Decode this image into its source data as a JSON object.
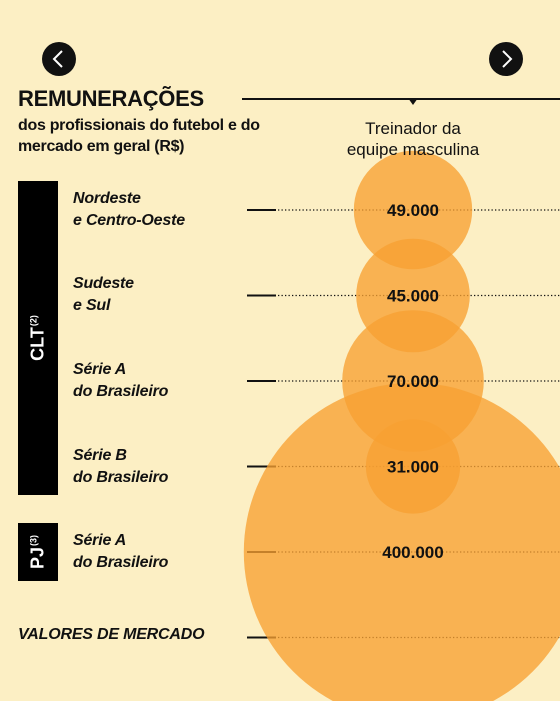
{
  "navigation": {
    "prev_icon": "chevron-left-icon",
    "next_icon": "chevron-right-icon"
  },
  "header": {
    "title": "REMUNERAÇÕES",
    "subtitle": "dos profissionais do futebol e do mercado em geral (R$)",
    "column_header_line1": "Treinador da",
    "column_header_line2": "equipe masculina"
  },
  "groups": {
    "clt": {
      "label": "CLT",
      "note": "(2)"
    },
    "pj": {
      "label": "PJ",
      "note": "(3)"
    }
  },
  "rows": [
    {
      "line1": "Nordeste",
      "line2": "e Centro-Oeste"
    },
    {
      "line1": "Sudeste",
      "line2": "e Sul"
    },
    {
      "line1": "Série A",
      "line2": "do Brasileiro"
    },
    {
      "line1": "Série B",
      "line2": "do Brasileiro"
    },
    {
      "line1": "Série A",
      "line2": "do Brasileiro"
    },
    {
      "line1": "VALORES DE MERCADO",
      "line2": ""
    }
  ],
  "colors": {
    "background": "#fcefc4",
    "bubble": "#f7a032",
    "text": "#111111",
    "bar": "#000000"
  },
  "chart_data": {
    "type": "bubble",
    "title": "REMUNERAÇÕES",
    "subtitle": "dos profissionais do futebol e do mercado em geral (R$)",
    "column": "Treinador da equipe masculina",
    "categories": [
      "Nordeste e Centro-Oeste",
      "Sudeste e Sul",
      "Série A do Brasileiro",
      "Série B do Brasileiro",
      "Série A do Brasileiro",
      "VALORES DE MERCADO"
    ],
    "groups": [
      "CLT",
      "CLT",
      "CLT",
      "CLT",
      "PJ",
      ""
    ],
    "values": [
      49000,
      45000,
      70000,
      31000,
      400000,
      null
    ],
    "value_labels": [
      "49.000",
      "45.000",
      "70.000",
      "31.000",
      "400.000",
      ""
    ]
  }
}
